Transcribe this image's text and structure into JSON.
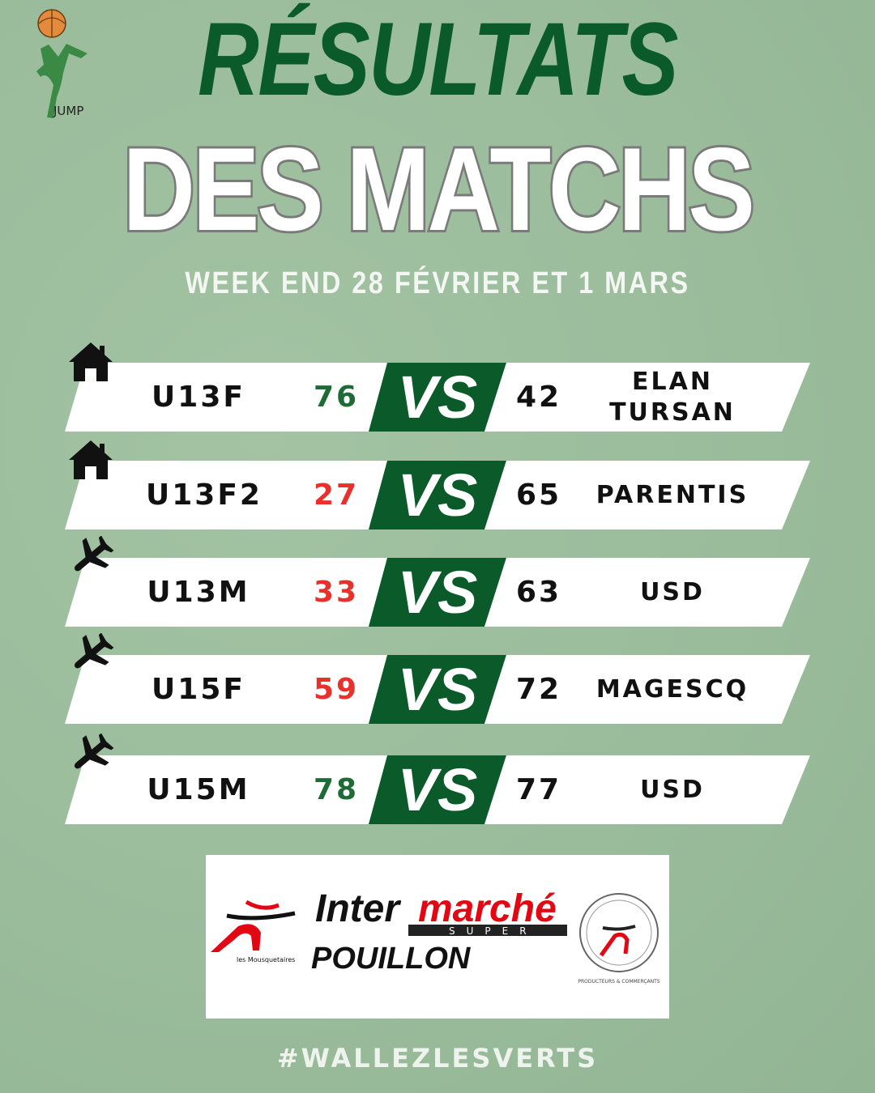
{
  "title_line1": "RÉSULTATS",
  "title_line2": "DES MATCHS",
  "subtitle": "WEEK END 28 FÉVRIER ET 1 MARS",
  "logo_text": "JUMP",
  "vs_label": "VS",
  "colors": {
    "green": "#0a5a2a",
    "win": "#1f6b35",
    "loss": "#e8302c",
    "background": "#9bbd9c"
  },
  "matches": [
    {
      "venue": "home",
      "icon": "house-icon",
      "team": "U13F",
      "score": "76",
      "opponent_score": "42",
      "opponent": "ELAN\nTURSAN",
      "result": "win"
    },
    {
      "venue": "home",
      "icon": "house-icon",
      "team": "U13F2",
      "score": "27",
      "opponent_score": "65",
      "opponent": "PARENTIS",
      "result": "loss"
    },
    {
      "venue": "away",
      "icon": "airplane-icon",
      "team": "U13M",
      "score": "33",
      "opponent_score": "63",
      "opponent": "USD",
      "result": "loss"
    },
    {
      "venue": "away",
      "icon": "airplane-icon",
      "team": "U15F",
      "score": "59",
      "opponent_score": "72",
      "opponent": "MAGESCQ",
      "result": "loss"
    },
    {
      "venue": "away",
      "icon": "airplane-icon",
      "team": "U15M",
      "score": "78",
      "opponent_score": "77",
      "opponent": "USD",
      "result": "win"
    }
  ],
  "sponsor": {
    "brand_a": "Inter",
    "brand_b": "marché",
    "tag": "SUPER",
    "city": "POUILLON",
    "left_caption": "les Mousquetaires",
    "seal": "PRODUCTEURS & COMMERÇANTS"
  },
  "hashtag": "#WALLEZLESVERTS"
}
